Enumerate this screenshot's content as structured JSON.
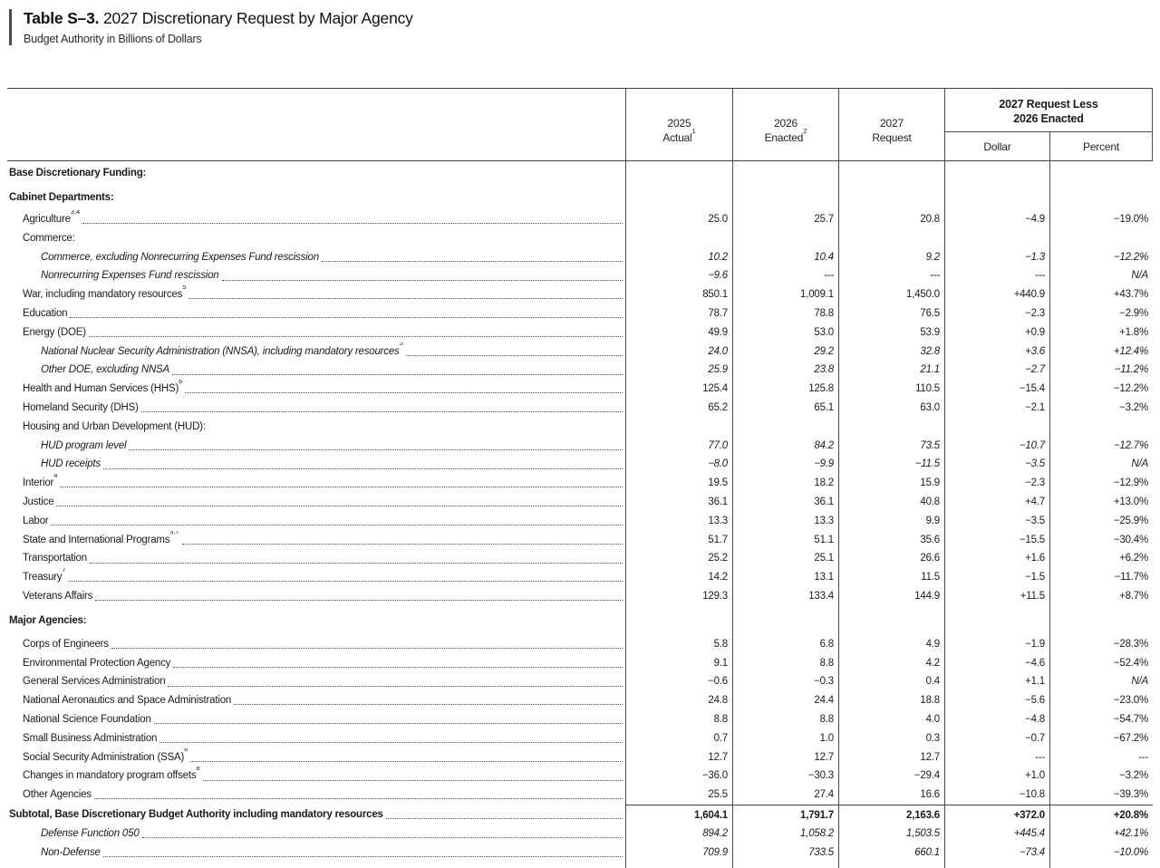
{
  "header": {
    "table_label": "Table S–3.",
    "title_rest": " 2027 Discretionary Request by Major Agency",
    "subtitle": "Budget Authority in Billions of Dollars"
  },
  "table": {
    "columns": [
      {
        "line1": "2025",
        "line2": "Actual",
        "sup": "1"
      },
      {
        "line1": "2026",
        "line2": "Enacted",
        "sup": "2"
      },
      {
        "line1": "2027",
        "line2": "Request",
        "sup": ""
      }
    ],
    "group_header": {
      "line1": "2027 Request Less",
      "line2": "2026 Enacted",
      "sub": [
        "Dollar",
        "Percent"
      ]
    },
    "rows": [
      {
        "label": "Base Discretionary Funding:",
        "indent": 0,
        "style": "section"
      },
      {
        "label": "Cabinet Departments:",
        "indent": 0,
        "style": "section"
      },
      {
        "label": "Agriculture",
        "sup": "3,4",
        "indent": 1,
        "values": [
          "25.0",
          "25.7",
          "20.8",
          "−4.9",
          "−19.0%"
        ]
      },
      {
        "label": "Commerce:",
        "indent": 1
      },
      {
        "label": "Commerce, excluding Nonrecurring Expenses Fund rescission",
        "indent": 2,
        "style": "italic",
        "values": [
          "10.2",
          "10.4",
          "9.2",
          "−1.3",
          "−12.2%"
        ]
      },
      {
        "label": "Nonrecurring Expenses Fund rescission",
        "indent": 2,
        "style": "italic",
        "values": [
          "−9.6",
          "---",
          "---",
          "---",
          "N/A"
        ]
      },
      {
        "label": "War, including mandatory resources",
        "sup": "5",
        "indent": 1,
        "values": [
          "850.1",
          "1,009.1",
          "1,450.0",
          "+440.9",
          "+43.7%"
        ]
      },
      {
        "label": "Education",
        "indent": 1,
        "values": [
          "78.7",
          "78.8",
          "76.5",
          "−2.3",
          "−2.9%"
        ]
      },
      {
        "label": "Energy (DOE)",
        "indent": 1,
        "values": [
          "49.9",
          "53.0",
          "53.9",
          "+0.9",
          "+1.8%"
        ]
      },
      {
        "label": "National Nuclear Security Administration (NNSA), including mandatory resources",
        "sup": "5",
        "indent": 2,
        "style": "italic",
        "values": [
          "24.0",
          "29.2",
          "32.8",
          "+3.6",
          "+12.4%"
        ]
      },
      {
        "label": "Other DOE, excluding NNSA",
        "indent": 2,
        "style": "italic",
        "values": [
          "25.9",
          "23.8",
          "21.1",
          "−2.7",
          "−11.2%"
        ]
      },
      {
        "label": "Health and Human Services (HHS)",
        "sup": "6",
        "indent": 1,
        "values": [
          "125.4",
          "125.8",
          "110.5",
          "−15.4",
          "−12.2%"
        ]
      },
      {
        "label": "Homeland Security (DHS)",
        "indent": 1,
        "values": [
          "65.2",
          "65.1",
          "63.0",
          "−2.1",
          "−3.2%"
        ]
      },
      {
        "label": "Housing and Urban Development (HUD):",
        "indent": 1
      },
      {
        "label": "HUD program level",
        "indent": 2,
        "style": "italic",
        "values": [
          "77.0",
          "84.2",
          "73.5",
          "−10.7",
          "−12.7%"
        ]
      },
      {
        "label": "HUD receipts",
        "indent": 2,
        "style": "italic",
        "values": [
          "−8.0",
          "−9.9",
          "−11.5",
          "−3.5",
          "N/A"
        ]
      },
      {
        "label": "Interior",
        "sup": "4",
        "indent": 1,
        "values": [
          "19.5",
          "18.2",
          "15.9",
          "−2.3",
          "−12.9%"
        ]
      },
      {
        "label": "Justice",
        "indent": 1,
        "values": [
          "36.1",
          "36.1",
          "40.8",
          "+4.7",
          "+13.0%"
        ]
      },
      {
        "label": "Labor",
        "indent": 1,
        "values": [
          "13.3",
          "13.3",
          "9.9",
          "−3.5",
          "−25.9%"
        ]
      },
      {
        "label": "State and International Programs",
        "sup": "3,7",
        "indent": 1,
        "values": [
          "51.7",
          "51.1",
          "35.6",
          "−15.5",
          "−30.4%"
        ]
      },
      {
        "label": "Transportation",
        "indent": 1,
        "values": [
          "25.2",
          "25.1",
          "26.6",
          "+1.6",
          "+6.2%"
        ]
      },
      {
        "label": "Treasury",
        "sup": "7",
        "indent": 1,
        "values": [
          "14.2",
          "13.1",
          "11.5",
          "−1.5",
          "−11.7%"
        ]
      },
      {
        "label": "Veterans Affairs",
        "indent": 1,
        "values": [
          "129.3",
          "133.4",
          "144.9",
          "+11.5",
          "+8.7%"
        ]
      },
      {
        "label": "Major Agencies:",
        "indent": 0,
        "style": "section",
        "spacing": "lg"
      },
      {
        "label": "Corps of Engineers",
        "indent": 1,
        "values": [
          "5.8",
          "6.8",
          "4.9",
          "−1.9",
          "−28.3%"
        ]
      },
      {
        "label": "Environmental Protection Agency",
        "indent": 1,
        "values": [
          "9.1",
          "8.8",
          "4.2",
          "−4.6",
          "−52.4%"
        ]
      },
      {
        "label": "General Services Administration",
        "indent": 1,
        "values": [
          "−0.6",
          "−0.3",
          "0.4",
          "+1.1",
          "N/A"
        ]
      },
      {
        "label": "National Aeronautics and Space Administration",
        "indent": 1,
        "values": [
          "24.8",
          "24.4",
          "18.8",
          "−5.6",
          "−23.0%"
        ]
      },
      {
        "label": "National Science Foundation",
        "indent": 1,
        "values": [
          "8.8",
          "8.8",
          "4.0",
          "−4.8",
          "−54.7%"
        ]
      },
      {
        "label": "Small Business Administration",
        "indent": 1,
        "values": [
          "0.7",
          "1.0",
          "0.3",
          "−0.7",
          "−67.2%"
        ]
      },
      {
        "label": "Social Security Administration (SSA)",
        "sup": "6",
        "indent": 1,
        "values": [
          "12.7",
          "12.7",
          "12.7",
          "---",
          "---"
        ]
      },
      {
        "label": "Changes in mandatory program offsets",
        "sup": "8",
        "indent": 1,
        "values": [
          "−36.0",
          "−30.3",
          "−29.4",
          "+1.0",
          "−3.2%"
        ]
      },
      {
        "label": "Other Agencies",
        "indent": 1,
        "values": [
          "25.5",
          "27.4",
          "16.6",
          "−10.8",
          "−39.3%"
        ]
      },
      {
        "label": "Subtotal, Base Discretionary Budget Authority including mandatory resources",
        "indent": 0,
        "style": "bold",
        "topline": true,
        "values": [
          "1,604.1",
          "1,791.7",
          "2,163.6",
          "+372.0",
          "+20.8%"
        ]
      },
      {
        "label": "Defense Function 050",
        "indent": 2,
        "style": "italic",
        "values": [
          "894.2",
          "1,058.2",
          "1,503.5",
          "+445.4",
          "+42.1%"
        ]
      },
      {
        "label": "Non-Defense",
        "indent": 2,
        "style": "italic",
        "values": [
          "709.9",
          "733.5",
          "660.1",
          "−73.4",
          "−10.0%"
        ]
      }
    ]
  }
}
